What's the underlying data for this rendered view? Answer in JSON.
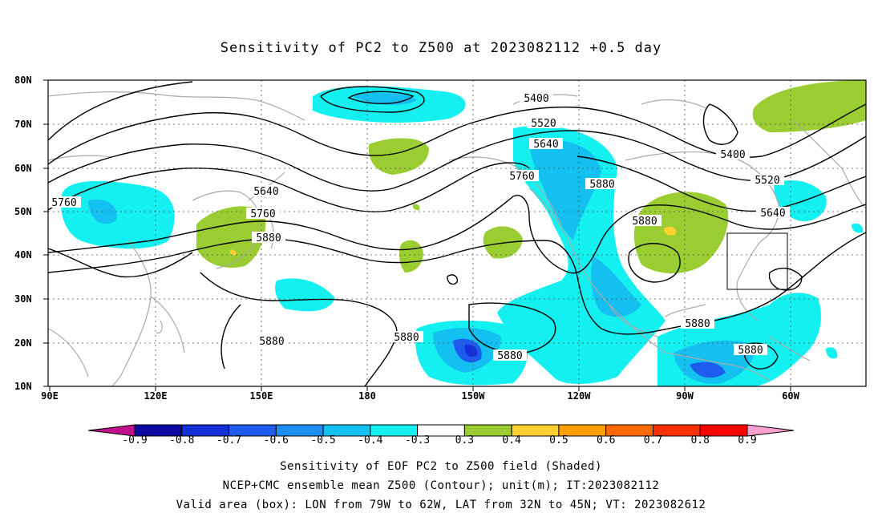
{
  "title": "Sensitivity of PC2 to Z500 at 2023082112 +0.5 day",
  "lat_labels": [
    "80N",
    "70N",
    "60N",
    "50N",
    "40N",
    "30N",
    "20N",
    "10N"
  ],
  "lon_labels": [
    "90E",
    "120E",
    "150E",
    "180",
    "150W",
    "120W",
    "90W",
    "60W"
  ],
  "contour_labels": [
    "5400",
    "5400",
    "5520",
    "5520",
    "5640",
    "5640",
    "5640",
    "5760",
    "5760",
    "5760",
    "5880",
    "5880",
    "5880",
    "5880",
    "5880",
    "5880",
    "5880"
  ],
  "colorbar": {
    "labels": [
      "-0.9",
      "-0.8",
      "-0.7",
      "-0.6",
      "-0.5",
      "-0.4",
      "-0.3",
      "0.3",
      "0.4",
      "0.5",
      "0.6",
      "0.7",
      "0.8",
      "0.9"
    ],
    "colors": [
      "#c0108c",
      "#0a0aa0",
      "#1530d8",
      "#1e5cf0",
      "#1e8ef0",
      "#14c0f0",
      "#14f0f0",
      "#ffffff",
      "#9acd32",
      "#ffd030",
      "#ffa000",
      "#ff6a00",
      "#ff3000",
      "#ff0000",
      "#ffa0d0"
    ]
  },
  "captions": [
    "Sensitivity of EOF PC2 to Z500 field (Shaded)",
    "NCEP+CMC ensemble mean Z500 (Contour); unit(m); IT:2023082112",
    "Valid area (box): LON from 79W to 62W, LAT from 32N to 45N; VT: 2023082612"
  ],
  "colors": {
    "positive_fill": "#9acd32",
    "positive_core": "#ffd030",
    "negative_light": "#14f0f0",
    "negative_mid": "#14c0f0",
    "negative_strong": "#1e5cf0",
    "coastline": "#a9a9a9",
    "contour": "#000000"
  }
}
